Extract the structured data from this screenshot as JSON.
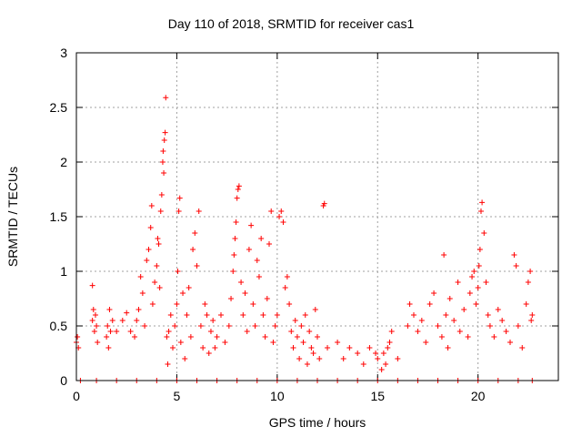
{
  "chart_data": {
    "type": "scatter",
    "title": "Day 110 of 2018, SRMTID for receiver cas1",
    "xlabel": "GPS time / hours",
    "ylabel": "SRMTID / TECUs",
    "xlim": [
      0,
      24
    ],
    "ylim": [
      0,
      3
    ],
    "xticks": [
      "0",
      "5",
      "10",
      "15",
      "20"
    ],
    "yticks": [
      "0",
      "0.5",
      "1",
      "1.5",
      "2",
      "2.5",
      "3"
    ],
    "grid": true,
    "marker": "+",
    "color": "#ff0000",
    "series": [
      {
        "name": "SRMTID",
        "points": [
          [
            0.0,
            0.35
          ],
          [
            0.05,
            0.4
          ],
          [
            0.1,
            0.3
          ],
          [
            0.8,
            0.55
          ],
          [
            0.85,
            0.65
          ],
          [
            0.9,
            0.45
          ],
          [
            0.95,
            0.6
          ],
          [
            0.8,
            0.87
          ],
          [
            1.0,
            0.5
          ],
          [
            1.05,
            0.35
          ],
          [
            1.5,
            0.4
          ],
          [
            1.55,
            0.5
          ],
          [
            1.6,
            0.3
          ],
          [
            1.65,
            0.65
          ],
          [
            1.7,
            0.45
          ],
          [
            1.8,
            0.55
          ],
          [
            2.0,
            0.45
          ],
          [
            2.3,
            0.55
          ],
          [
            2.5,
            0.62
          ],
          [
            2.7,
            0.45
          ],
          [
            2.9,
            0.4
          ],
          [
            3.0,
            0.55
          ],
          [
            3.1,
            0.65
          ],
          [
            3.2,
            0.95
          ],
          [
            3.3,
            0.8
          ],
          [
            3.4,
            0.5
          ],
          [
            3.5,
            1.1
          ],
          [
            3.6,
            1.2
          ],
          [
            3.7,
            1.4
          ],
          [
            3.75,
            1.6
          ],
          [
            3.8,
            0.7
          ],
          [
            3.9,
            0.9
          ],
          [
            4.0,
            1.05
          ],
          [
            4.05,
            1.3
          ],
          [
            4.1,
            1.25
          ],
          [
            4.15,
            0.85
          ],
          [
            4.2,
            1.55
          ],
          [
            4.25,
            1.7
          ],
          [
            4.3,
            2.0
          ],
          [
            4.32,
            2.1
          ],
          [
            4.35,
            1.9
          ],
          [
            4.38,
            2.2
          ],
          [
            4.42,
            2.27
          ],
          [
            4.45,
            2.59
          ],
          [
            4.5,
            0.4
          ],
          [
            4.55,
            0.15
          ],
          [
            4.6,
            0.45
          ],
          [
            4.7,
            0.6
          ],
          [
            4.8,
            0.3
          ],
          [
            4.9,
            0.5
          ],
          [
            5.0,
            0.7
          ],
          [
            5.05,
            1.0
          ],
          [
            5.1,
            1.55
          ],
          [
            5.15,
            1.67
          ],
          [
            5.2,
            0.35
          ],
          [
            5.3,
            0.8
          ],
          [
            5.4,
            0.2
          ],
          [
            5.5,
            0.6
          ],
          [
            5.6,
            0.85
          ],
          [
            5.7,
            0.4
          ],
          [
            5.8,
            1.2
          ],
          [
            5.9,
            1.35
          ],
          [
            6.0,
            1.05
          ],
          [
            6.1,
            1.55
          ],
          [
            6.2,
            0.5
          ],
          [
            6.3,
            0.3
          ],
          [
            6.4,
            0.7
          ],
          [
            6.5,
            0.6
          ],
          [
            6.6,
            0.25
          ],
          [
            6.7,
            0.45
          ],
          [
            6.8,
            0.55
          ],
          [
            6.9,
            0.3
          ],
          [
            7.0,
            0.4
          ],
          [
            7.2,
            0.6
          ],
          [
            7.4,
            0.35
          ],
          [
            7.6,
            0.5
          ],
          [
            7.7,
            0.75
          ],
          [
            7.8,
            1.0
          ],
          [
            7.85,
            1.15
          ],
          [
            7.9,
            1.3
          ],
          [
            7.95,
            1.45
          ],
          [
            8.0,
            1.67
          ],
          [
            8.05,
            1.75
          ],
          [
            8.1,
            1.78
          ],
          [
            8.2,
            0.9
          ],
          [
            8.3,
            0.6
          ],
          [
            8.4,
            0.8
          ],
          [
            8.5,
            0.45
          ],
          [
            8.6,
            1.2
          ],
          [
            8.7,
            1.42
          ],
          [
            8.8,
            0.7
          ],
          [
            8.9,
            0.5
          ],
          [
            9.0,
            1.1
          ],
          [
            9.1,
            0.95
          ],
          [
            9.2,
            1.3
          ],
          [
            9.3,
            0.6
          ],
          [
            9.4,
            0.4
          ],
          [
            9.5,
            0.75
          ],
          [
            9.6,
            1.25
          ],
          [
            9.7,
            1.55
          ],
          [
            9.8,
            0.35
          ],
          [
            9.9,
            0.5
          ],
          [
            10.0,
            0.6
          ],
          [
            10.1,
            1.5
          ],
          [
            10.2,
            1.55
          ],
          [
            10.3,
            1.45
          ],
          [
            10.4,
            0.85
          ],
          [
            10.5,
            0.95
          ],
          [
            10.6,
            0.7
          ],
          [
            10.7,
            0.45
          ],
          [
            10.8,
            0.3
          ],
          [
            10.9,
            0.55
          ],
          [
            11.0,
            0.4
          ],
          [
            11.1,
            0.2
          ],
          [
            11.2,
            0.5
          ],
          [
            11.3,
            0.35
          ],
          [
            11.4,
            0.6
          ],
          [
            11.5,
            0.15
          ],
          [
            11.6,
            0.45
          ],
          [
            11.7,
            0.3
          ],
          [
            11.8,
            0.25
          ],
          [
            11.9,
            0.65
          ],
          [
            12.0,
            0.4
          ],
          [
            12.1,
            0.2
          ],
          [
            12.3,
            1.6
          ],
          [
            12.35,
            1.62
          ],
          [
            12.5,
            0.3
          ],
          [
            13.0,
            0.35
          ],
          [
            13.3,
            0.2
          ],
          [
            13.6,
            0.3
          ],
          [
            14.0,
            0.25
          ],
          [
            14.3,
            0.15
          ],
          [
            14.6,
            0.3
          ],
          [
            14.9,
            0.25
          ],
          [
            15.0,
            0.2
          ],
          [
            15.2,
            0.1
          ],
          [
            15.3,
            0.25
          ],
          [
            15.4,
            0.15
          ],
          [
            15.5,
            0.3
          ],
          [
            15.6,
            0.35
          ],
          [
            15.7,
            0.45
          ],
          [
            16.0,
            0.2
          ],
          [
            16.5,
            0.5
          ],
          [
            16.6,
            0.7
          ],
          [
            16.8,
            0.6
          ],
          [
            17.0,
            0.45
          ],
          [
            17.2,
            0.55
          ],
          [
            17.4,
            0.35
          ],
          [
            17.6,
            0.7
          ],
          [
            17.8,
            0.8
          ],
          [
            18.0,
            0.5
          ],
          [
            18.2,
            0.4
          ],
          [
            18.3,
            1.15
          ],
          [
            18.4,
            0.6
          ],
          [
            18.5,
            0.3
          ],
          [
            18.6,
            0.75
          ],
          [
            18.8,
            0.55
          ],
          [
            19.0,
            0.9
          ],
          [
            19.1,
            0.45
          ],
          [
            19.3,
            0.65
          ],
          [
            19.5,
            0.4
          ],
          [
            19.6,
            0.8
          ],
          [
            19.7,
            0.95
          ],
          [
            19.8,
            1.0
          ],
          [
            19.9,
            0.7
          ],
          [
            20.0,
            0.85
          ],
          [
            20.05,
            1.05
          ],
          [
            20.1,
            1.2
          ],
          [
            20.15,
            1.55
          ],
          [
            20.2,
            1.63
          ],
          [
            20.3,
            1.35
          ],
          [
            20.4,
            0.9
          ],
          [
            20.5,
            0.6
          ],
          [
            20.6,
            0.5
          ],
          [
            20.8,
            0.4
          ],
          [
            21.0,
            0.65
          ],
          [
            21.2,
            0.55
          ],
          [
            21.4,
            0.45
          ],
          [
            21.6,
            0.35
          ],
          [
            21.8,
            1.15
          ],
          [
            21.9,
            1.05
          ],
          [
            22.0,
            0.5
          ],
          [
            22.2,
            0.3
          ],
          [
            22.4,
            0.7
          ],
          [
            22.5,
            0.9
          ],
          [
            22.6,
            1.0
          ],
          [
            22.65,
            0.55
          ],
          [
            22.7,
            0.6
          ],
          [
            0.2,
            0.0
          ],
          [
            1.0,
            0.0
          ],
          [
            2.0,
            0.0
          ],
          [
            3.0,
            0.0
          ],
          [
            4.0,
            0.0
          ],
          [
            5.0,
            0.0
          ],
          [
            6.0,
            0.0
          ],
          [
            7.0,
            0.0
          ],
          [
            8.0,
            0.0
          ],
          [
            9.0,
            0.0
          ],
          [
            10.0,
            0.0
          ],
          [
            11.0,
            0.0
          ],
          [
            12.0,
            0.0
          ],
          [
            13.0,
            0.0
          ],
          [
            14.0,
            0.0
          ],
          [
            15.0,
            0.0
          ],
          [
            16.0,
            0.0
          ],
          [
            17.0,
            0.0
          ],
          [
            18.0,
            0.0
          ],
          [
            19.0,
            0.0
          ],
          [
            20.0,
            0.0
          ],
          [
            21.0,
            0.0
          ],
          [
            22.0,
            0.0
          ],
          [
            22.7,
            0.0
          ]
        ]
      }
    ]
  }
}
